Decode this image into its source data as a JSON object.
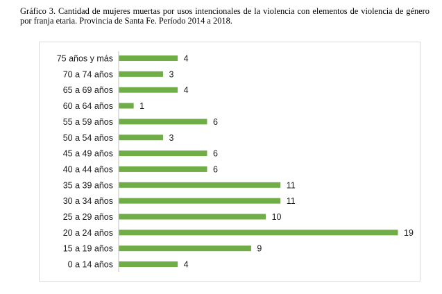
{
  "caption": "Gráfico 3. Cantidad de mujeres muertas por usos intencionales de la violencia con elementos de violencia de género por franja etaria. Provincia de Santa Fe. Período 2014 a 2018.",
  "chart_data": {
    "type": "bar",
    "orientation": "horizontal",
    "categories": [
      "75 años y más",
      "70 a 74 años",
      "65 a 69 años",
      "60 a 64 años",
      "55 a 59 años",
      "50 a 54 años",
      "45 a 49 años",
      "40 a 44 años",
      "35 a 39 años",
      "30 a 34 años",
      "25 a 29 años",
      "20 a 24 años",
      "15 a 19 años",
      "0 a 14 años"
    ],
    "values": [
      4,
      3,
      4,
      1,
      6,
      3,
      6,
      6,
      11,
      11,
      10,
      19,
      9,
      4
    ],
    "data_labels": [
      "4",
      "3",
      "4",
      "1",
      "6",
      "3",
      "6",
      "6",
      "11",
      "11",
      "10",
      "19",
      "9",
      "4"
    ],
    "xlim": [
      0,
      19
    ],
    "grid": false,
    "legend": "none",
    "bar_color": "#70ad47"
  }
}
